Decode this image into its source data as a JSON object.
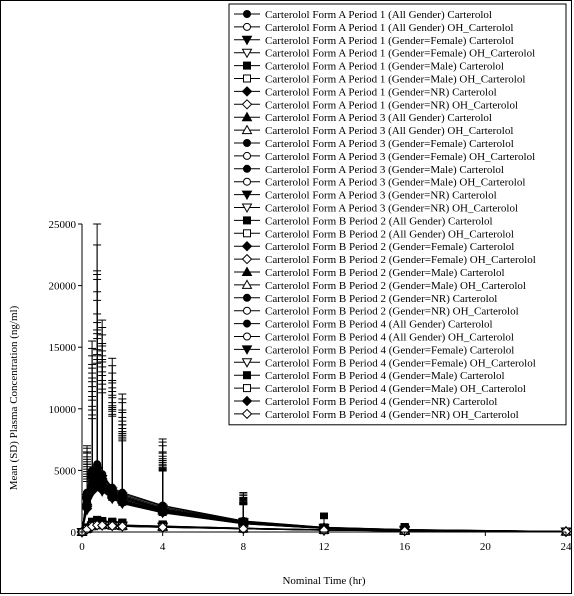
{
  "chart_data": {
    "type": "line",
    "xlabel": "Nominal Time (hr)",
    "ylabel": "Mean (SD) Plasma Concentration (ng/ml)",
    "xlim": [
      0,
      24
    ],
    "ylim": [
      0,
      25000
    ],
    "x_ticks": [
      0,
      4,
      8,
      12,
      16,
      20,
      24
    ],
    "y_ticks": [
      0,
      5000,
      10000,
      15000,
      20000,
      25000
    ],
    "x_tick_labels": [
      "0",
      "4",
      "8",
      "12",
      "16",
      "20",
      "24"
    ],
    "y_tick_labels": [
      "0",
      "5000",
      "10000",
      "15000",
      "20000",
      "25000"
    ],
    "grid": false,
    "legend_position": "top-right",
    "x": [
      0,
      0.25,
      0.5,
      0.75,
      1,
      1.5,
      2,
      4,
      8,
      12,
      16,
      24
    ],
    "series": [
      {
        "name": "Carterolol Form A Period 1 (All Gender)  Carterolol",
        "marker": "filled-circle",
        "values": [
          0,
          2900,
          4600,
          5000,
          4300,
          3300,
          2900,
          1900,
          800,
          350,
          180,
          40
        ],
        "sd": [
          0,
          3500,
          9000,
          15500,
          11000,
          9000,
          7000,
          4600,
          2000,
          1000,
          450,
          100
        ]
      },
      {
        "name": "Carterolol Form A Period 1 (All Gender)  OH_Carterolol",
        "marker": "open-circle",
        "values": [
          0,
          300,
          560,
          650,
          620,
          580,
          540,
          460,
          300,
          170,
          110,
          40
        ],
        "sd": [
          0,
          300,
          500,
          550,
          500,
          480,
          450,
          380,
          250,
          150,
          100,
          40
        ]
      },
      {
        "name": "Carterolol Form A Period 1 (Gender=Female)  Carterolol",
        "marker": "filled-triangle-down",
        "values": [
          0,
          2500,
          4200,
          4700,
          4000,
          3100,
          2700,
          1800,
          750,
          320,
          170,
          40
        ],
        "sd": [
          0,
          3000,
          8000,
          13000,
          10000,
          8000,
          6000,
          4000,
          1800,
          900,
          400,
          90
        ]
      },
      {
        "name": "Carterolol Form A Period 1 (Gender=Female)  OH_Carterolol",
        "marker": "open-triangle-down",
        "values": [
          0,
          250,
          500,
          600,
          580,
          540,
          500,
          430,
          280,
          160,
          100,
          35
        ],
        "sd": [
          0,
          250,
          450,
          500,
          480,
          450,
          420,
          350,
          230,
          140,
          90,
          35
        ]
      },
      {
        "name": "Carterolol Form A Period 1 (Gender=Male)  Carterolol",
        "marker": "filled-square",
        "values": [
          0,
          3000,
          4800,
          5200,
          4500,
          3400,
          3000,
          2000,
          850,
          370,
          190,
          45
        ],
        "sd": [
          0,
          3500,
          9500,
          16000,
          11500,
          9500,
          7500,
          5000,
          2100,
          1050,
          470,
          105
        ]
      },
      {
        "name": "Carterolol Form A Period 1 (Gender=Male)  OH_Carterolol",
        "marker": "open-square",
        "values": [
          0,
          320,
          580,
          680,
          640,
          600,
          560,
          480,
          310,
          180,
          115,
          42
        ],
        "sd": [
          0,
          320,
          520,
          570,
          520,
          500,
          470,
          400,
          260,
          160,
          105,
          42
        ]
      },
      {
        "name": "Carterolol Form A Period 1 (Gender=NR)  Carterolol",
        "marker": "filled-diamond",
        "values": [
          0,
          2700,
          4400,
          4800,
          4200,
          3200,
          2800,
          1850,
          780,
          340,
          175,
          40
        ],
        "sd": [
          0,
          3200,
          8500,
          14000,
          10500,
          8500,
          6500,
          4300,
          1900,
          950,
          430,
          95
        ]
      },
      {
        "name": "Carterolol Form A Period 1 (Gender=NR)  OH_Carterolol",
        "marker": "open-diamond",
        "values": [
          0,
          280,
          540,
          630,
          600,
          560,
          520,
          440,
          290,
          165,
          105,
          38
        ],
        "sd": [
          0,
          280,
          480,
          530,
          490,
          470,
          440,
          370,
          240,
          145,
          95,
          38
        ]
      },
      {
        "name": "Carterolol Form A Period 3 (All Gender)  Carterolol",
        "marker": "filled-triangle-up",
        "values": [
          0,
          3100,
          4900,
          5400,
          4600,
          3500,
          3100,
          2100,
          880,
          380,
          195,
          45
        ],
        "sd": [
          0,
          3700,
          10000,
          15500,
          12000,
          10000,
          7700,
          5200,
          2200,
          1100,
          480,
          110
        ]
      },
      {
        "name": "Carterolol Form A Period 3 (All Gender)  OH_Carterolol",
        "marker": "open-triangle-up",
        "values": [
          0,
          310,
          570,
          660,
          630,
          590,
          550,
          470,
          305,
          175,
          112,
          41
        ],
        "sd": [
          0,
          310,
          510,
          560,
          510,
          490,
          460,
          390,
          255,
          155,
          102,
          41
        ]
      },
      {
        "name": "Carterolol Form A Period 3 (Gender=Female)  Carterolol",
        "marker": "filled-circle",
        "values": [
          0,
          2600,
          4300,
          4900,
          4100,
          3200,
          2800,
          1850,
          770,
          330,
          170,
          40
        ],
        "sd": [
          0,
          3100,
          8200,
          20800,
          10200,
          8200,
          6200,
          4100,
          1850,
          920,
          410,
          92
        ]
      },
      {
        "name": "Carterolol Form A Period 3 (Gender=Female)  OH_Carterolol",
        "marker": "open-circle",
        "values": [
          0,
          260,
          510,
          610,
          590,
          550,
          510,
          435,
          285,
          162,
          102,
          36
        ],
        "sd": [
          0,
          260,
          460,
          510,
          485,
          455,
          425,
          355,
          235,
          142,
          92,
          36
        ]
      },
      {
        "name": "Carterolol Form A Period 3 (Gender=Male)  Carterolol",
        "marker": "filled-circle",
        "values": [
          0,
          3200,
          5000,
          5500,
          4700,
          3600,
          3200,
          2150,
          900,
          390,
          200,
          46
        ],
        "sd": [
          0,
          3800,
          10500,
          17800,
          12500,
          10500,
          8000,
          5400,
          2300,
          1150,
          490,
          112
        ]
      },
      {
        "name": "Carterolol Form A Period 3 (Gender=Male)  OH_Carterolol",
        "marker": "open-circle",
        "values": [
          0,
          330,
          590,
          690,
          650,
          610,
          570,
          490,
          315,
          182,
          118,
          43
        ],
        "sd": [
          0,
          330,
          530,
          580,
          530,
          510,
          480,
          410,
          265,
          162,
          108,
          43
        ]
      },
      {
        "name": "Carterolol Form A Period 3 (Gender=NR)  Carterolol",
        "marker": "filled-triangle-down",
        "values": [
          0,
          2800,
          4500,
          5000,
          4300,
          3300,
          2900,
          1900,
          800,
          350,
          180,
          42
        ],
        "sd": [
          0,
          3300,
          8800,
          14500,
          10800,
          8800,
          6800,
          4500,
          1950,
          970,
          440,
          98
        ]
      },
      {
        "name": "Carterolol Form A Period 3 (Gender=NR)  OH_Carterolol",
        "marker": "open-triangle-down",
        "values": [
          0,
          290,
          550,
          640,
          610,
          570,
          530,
          450,
          295,
          168,
          108,
          39
        ],
        "sd": [
          0,
          290,
          490,
          540,
          495,
          475,
          445,
          375,
          245,
          148,
          98,
          39
        ]
      },
      {
        "name": "Carterolol Form B Period 2 (All Gender)  Carterolol",
        "marker": "filled-square",
        "values": [
          0,
          2400,
          3900,
          4400,
          3900,
          3000,
          2600,
          1700,
          720,
          310,
          160,
          38
        ],
        "sd": [
          0,
          2900,
          7500,
          12000,
          9500,
          7500,
          5800,
          3800,
          1700,
          860,
          390,
          88
        ]
      },
      {
        "name": "Carterolol Form B Period 2 (All Gender)  OH_Carterolol",
        "marker": "open-square",
        "values": [
          0,
          240,
          480,
          580,
          560,
          520,
          480,
          410,
          270,
          155,
          98,
          34
        ],
        "sd": [
          0,
          240,
          440,
          490,
          470,
          440,
          410,
          340,
          225,
          135,
          88,
          34
        ]
      },
      {
        "name": "Carterolol Form B Period 2 (Gender=Female)  Carterolol",
        "marker": "filled-diamond",
        "values": [
          0,
          2200,
          3700,
          4200,
          3700,
          2900,
          2500,
          1650,
          700,
          300,
          155,
          36
        ],
        "sd": [
          0,
          2700,
          7000,
          11500,
          9000,
          7200,
          5500,
          3600,
          1650,
          840,
          380,
          85
        ]
      },
      {
        "name": "Carterolol Form B Period 2 (Gender=Female)  OH_Carterolol",
        "marker": "open-diamond",
        "values": [
          0,
          230,
          470,
          570,
          550,
          510,
          470,
          400,
          265,
          150,
          95,
          33
        ],
        "sd": [
          0,
          230,
          430,
          480,
          460,
          430,
          400,
          330,
          220,
          130,
          85,
          33
        ]
      },
      {
        "name": "Carterolol Form B Period 2 (Gender=Male)  Carterolol",
        "marker": "filled-triangle-up",
        "values": [
          0,
          2500,
          4000,
          4500,
          4000,
          3100,
          2700,
          1750,
          740,
          320,
          165,
          39
        ],
        "sd": [
          0,
          3000,
          7800,
          12500,
          9800,
          7800,
          6000,
          3900,
          1750,
          880,
          400,
          90
        ]
      },
      {
        "name": "Carterolol Form B Period 2 (Gender=Male)  OH_Carterolol",
        "marker": "open-triangle-up",
        "values": [
          0,
          250,
          490,
          590,
          570,
          530,
          490,
          420,
          275,
          158,
          100,
          35
        ],
        "sd": [
          0,
          250,
          450,
          500,
          475,
          445,
          415,
          345,
          228,
          138,
          90,
          35
        ]
      },
      {
        "name": "Carterolol Form B Period 2 (Gender=NR)  Carterolol",
        "marker": "filled-circle",
        "values": [
          0,
          2300,
          3800,
          4300,
          3800,
          2950,
          2550,
          1680,
          710,
          305,
          158,
          37
        ],
        "sd": [
          0,
          2800,
          7200,
          11800,
          9200,
          7300,
          5600,
          3700,
          1680,
          850,
          385,
          86
        ]
      },
      {
        "name": "Carterolol Form B Period 2 (Gender=NR)  OH_Carterolol",
        "marker": "open-circle",
        "values": [
          0,
          235,
          475,
          575,
          555,
          515,
          475,
          405,
          268,
          152,
          96,
          33
        ],
        "sd": [
          0,
          235,
          435,
          485,
          465,
          435,
          405,
          335,
          222,
          132,
          86,
          33
        ]
      },
      {
        "name": "Carterolol Form B Period 4 (All Gender)  Carterolol",
        "marker": "filled-circle",
        "values": [
          0,
          2000,
          3400,
          3900,
          3500,
          2800,
          2400,
          1600,
          680,
          290,
          150,
          35
        ],
        "sd": [
          0,
          2500,
          6500,
          10500,
          8500,
          7000,
          5300,
          3500,
          1600,
          820,
          370,
          83
        ]
      },
      {
        "name": "Carterolol Form B Period 4 (All Gender)  OH_Carterolol",
        "marker": "open-circle",
        "values": [
          0,
          220,
          460,
          560,
          540,
          500,
          460,
          390,
          260,
          148,
          93,
          32
        ],
        "sd": [
          0,
          220,
          420,
          470,
          450,
          420,
          390,
          320,
          215,
          128,
          83,
          32
        ]
      },
      {
        "name": "Carterolol Form B Period 4 (Gender=Female)  Carterolol",
        "marker": "filled-triangle-down",
        "values": [
          0,
          1800,
          3200,
          3700,
          3300,
          2700,
          2300,
          1550,
          660,
          280,
          145,
          34
        ],
        "sd": [
          0,
          2300,
          6000,
          10000,
          8000,
          6700,
          5100,
          3400,
          1550,
          800,
          360,
          80
        ]
      },
      {
        "name": "Carterolol Form B Period 4 (Gender=Female)  OH_Carterolol",
        "marker": "open-triangle-down",
        "values": [
          0,
          210,
          450,
          550,
          530,
          490,
          450,
          380,
          255,
          145,
          90,
          31
        ],
        "sd": [
          0,
          210,
          410,
          460,
          440,
          410,
          380,
          310,
          210,
          125,
          80,
          31
        ]
      },
      {
        "name": "Carterolol Form B Period 4 (Gender=Male)  Carterolol",
        "marker": "filled-square",
        "values": [
          0,
          2100,
          3500,
          4000,
          3600,
          2850,
          2450,
          1620,
          690,
          295,
          152,
          36
        ],
        "sd": [
          0,
          2600,
          6700,
          10800,
          8700,
          7100,
          5400,
          3550,
          1620,
          830,
          375,
          84
        ]
      },
      {
        "name": "Carterolol Form B Period 4 (Gender=Male)  OH_Carterolol",
        "marker": "open-square",
        "values": [
          0,
          225,
          465,
          565,
          545,
          505,
          465,
          395,
          262,
          150,
          94,
          32
        ],
        "sd": [
          0,
          225,
          425,
          475,
          455,
          425,
          395,
          325,
          218,
          130,
          84,
          32
        ]
      },
      {
        "name": "Carterolol Form B Period 4 (Gender=NR)  Carterolol",
        "marker": "filled-diamond",
        "values": [
          0,
          1900,
          3300,
          3800,
          3400,
          2750,
          2350,
          1580,
          670,
          285,
          148,
          34
        ],
        "sd": [
          0,
          2400,
          6200,
          10200,
          8200,
          6800,
          5200,
          3450,
          1580,
          810,
          365,
          82
        ]
      },
      {
        "name": "Carterolol Form B Period 4 (Gender=NR)  OH_Carterolol",
        "marker": "open-diamond",
        "values": [
          0,
          215,
          455,
          555,
          535,
          495,
          455,
          385,
          258,
          146,
          92,
          31
        ],
        "sd": [
          0,
          215,
          415,
          465,
          445,
          415,
          385,
          315,
          212,
          126,
          82,
          31
        ]
      }
    ]
  }
}
